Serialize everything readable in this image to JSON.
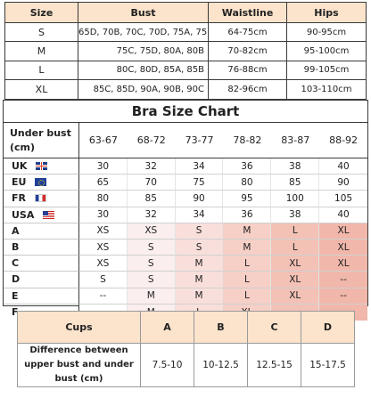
{
  "size_table": {
    "headers": [
      "Size",
      "Bust",
      "Waistline",
      "Hips"
    ],
    "rows": [
      [
        "S",
        "65D, 70B, 70C, 70D, 75A, 75B",
        "64-75cm",
        "90-95cm"
      ],
      [
        "M",
        "75C, 75D, 80A, 80B",
        "70-82cm",
        "95-100cm"
      ],
      [
        "L",
        "80C, 80D, 85A, 85B",
        "76-88cm",
        "99-105cm"
      ],
      [
        "XL",
        "85C, 85D, 90A, 90B, 90C",
        "82-96cm",
        "103-110cm"
      ]
    ]
  },
  "bra_chart": {
    "title": "Bra Size Chart",
    "header_label": "Under bust\n(cm)",
    "columns": [
      "63-67",
      "68-72",
      "73-77",
      "78-82",
      "83-87",
      "88-92"
    ],
    "region_rows": [
      {
        "label": "UK",
        "flag": "uk-flag-icon",
        "values": [
          "30",
          "32",
          "34",
          "36",
          "38",
          "40"
        ]
      },
      {
        "label": "EU",
        "flag": "eu-flag-icon",
        "values": [
          "65",
          "70",
          "75",
          "80",
          "85",
          "90"
        ]
      },
      {
        "label": "FR",
        "flag": "fr-flag-icon",
        "values": [
          "80",
          "85",
          "90",
          "95",
          "100",
          "105"
        ]
      },
      {
        "label": "USA",
        "flag": "us-flag-icon",
        "values": [
          "30",
          "32",
          "34",
          "36",
          "38",
          "40"
        ]
      }
    ],
    "cup_rows": [
      {
        "label": "A",
        "values": [
          "XS",
          "XS",
          "S",
          "M",
          "L",
          "XL"
        ]
      },
      {
        "label": "B",
        "values": [
          "XS",
          "S",
          "S",
          "M",
          "L",
          "XL"
        ]
      },
      {
        "label": "C",
        "values": [
          "XS",
          "S",
          "M",
          "L",
          "XL",
          "XL"
        ]
      },
      {
        "label": "D",
        "values": [
          "S",
          "S",
          "M",
          "L",
          "XL",
          "--"
        ]
      },
      {
        "label": "E",
        "values": [
          "--",
          "M",
          "M",
          "L",
          "XL",
          "--"
        ]
      },
      {
        "label": "F",
        "values": [
          "--",
          "M",
          "L",
          "XL",
          "--",
          "--"
        ]
      }
    ],
    "gradient_colors": [
      "#ffffff",
      "#fbeeee",
      "#f9dfdb",
      "#f6cfc6",
      "#f3c1b5",
      "#f1b7aa"
    ]
  },
  "cups_table": {
    "header_label": "Cups",
    "cups": [
      "A",
      "B",
      "C",
      "D"
    ],
    "row_label": "Difference between upper bust and under bust (cm)",
    "values": [
      "7.5-10",
      "10-12.5",
      "12.5-15",
      "15-17.5"
    ]
  },
  "colors": {
    "header_fill": "#fbe3cc",
    "border": "#3a3a3a"
  }
}
